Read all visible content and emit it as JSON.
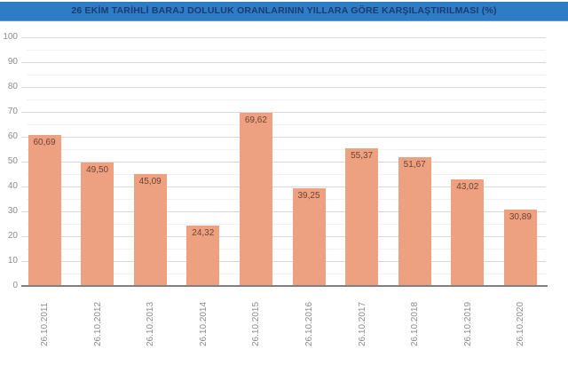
{
  "title": "26 EKİM TARİHLİ BARAJ DOLULUK ORANLARININ YILLARA GÖRE KARŞILAŞTIRILMASI (%)",
  "colors": {
    "title_bg": "#2e7cc4",
    "title_text": "#1d3a70",
    "bar_fill": "#eda180",
    "bar_value_label": "#6b4334",
    "tick_label": "#8c8c8c",
    "gridline_major": "#d9d9d9",
    "gridline_minor": "#f1f1f1",
    "axis_line": "#808080",
    "background": "#ffffff"
  },
  "chart_data": {
    "type": "bar",
    "title": "26 EKİM TARİHLİ BARAJ DOLULUK ORANLARININ YILLARA GÖRE KARŞILAŞTIRILMASI (%)",
    "categories": [
      "26.10.2011",
      "26.10.2012",
      "26.10.2013",
      "26.10.2014",
      "26.10.2015",
      "26.10.2016",
      "26.10.2017",
      "26.10.2018",
      "26.10.2019",
      "26.10.2020"
    ],
    "values": [
      60.69,
      49.5,
      45.09,
      24.32,
      69.62,
      39.25,
      55.37,
      51.67,
      43.02,
      30.89
    ],
    "value_labels": [
      "60,69",
      "49,50",
      "45,09",
      "24,32",
      "69,62",
      "39,25",
      "55,37",
      "51,67",
      "43,02",
      "30,89"
    ],
    "xlabel": "",
    "ylabel": "",
    "ylim": [
      0,
      100
    ],
    "y_ticks": [
      0,
      10,
      20,
      30,
      40,
      50,
      60,
      70,
      80,
      90,
      100
    ],
    "minor_grid_step": 5,
    "grid": "horizontal major and minor lines",
    "legend": "none",
    "value_label_position": "inside-top",
    "x_label_rotation": -90
  }
}
